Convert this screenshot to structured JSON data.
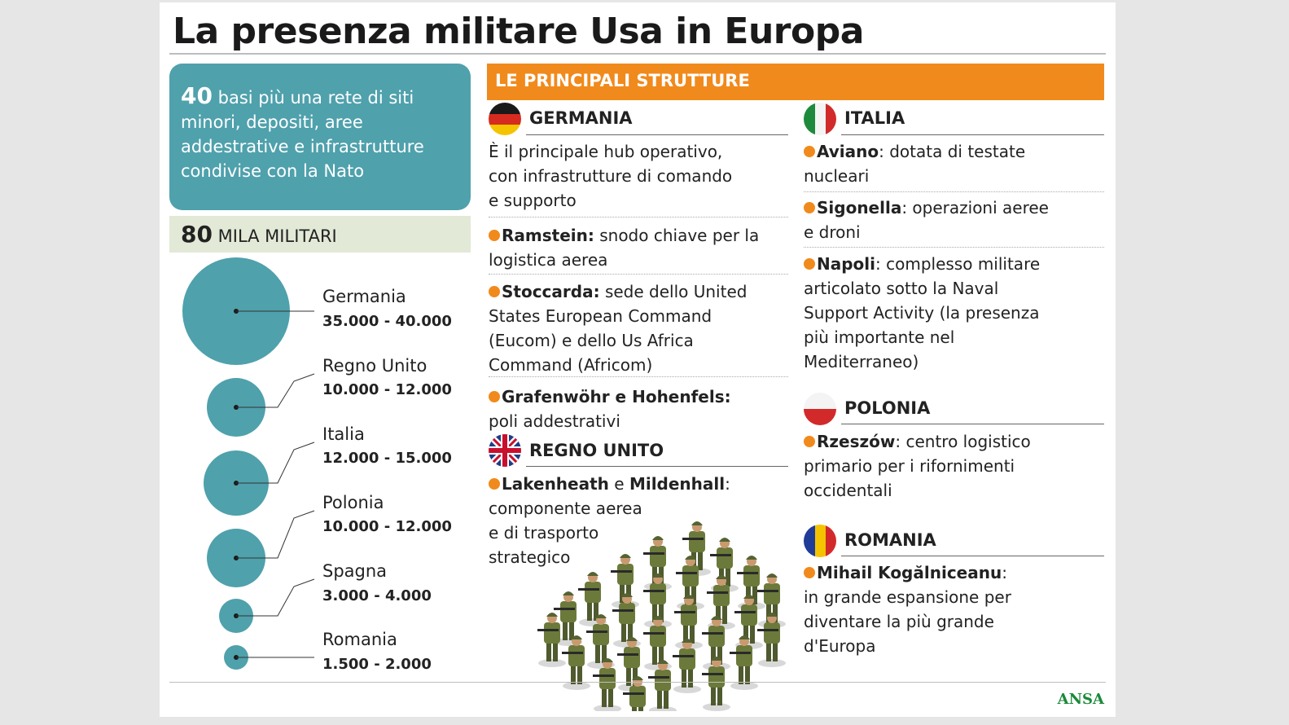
{
  "title": "La presenza militare Usa in Europa",
  "summary": {
    "bases_number": "40",
    "bases_text_l1": " basi più una rete di siti",
    "bases_text_l2": "minori, depositi, aree",
    "bases_text_l3": "addestrative e infrastrutture",
    "bases_text_l4": "condivise con la Nato",
    "troops_number": "80",
    "troops_text": " MILA MILITARI"
  },
  "troops_by_country": [
    {
      "country": "Germania",
      "range": "35.000 - 40.000",
      "min": 35000,
      "max": 40000
    },
    {
      "country": "Regno Unito",
      "range": "10.000 - 12.000",
      "min": 10000,
      "max": 12000
    },
    {
      "country": "Italia",
      "range": "12.000 - 15.000",
      "min": 12000,
      "max": 15000
    },
    {
      "country": "Polonia",
      "range": "10.000 - 12.000",
      "min": 10000,
      "max": 12000
    },
    {
      "country": "Spagna",
      "range": "3.000 - 4.000",
      "min": 3000,
      "max": 4000
    },
    {
      "country": "Romania",
      "range": "1.500 - 2.000",
      "min": 1500,
      "max": 2000
    }
  ],
  "structures_header": "LE PRINCIPALI STRUTTURE",
  "germania": {
    "name": "GERMANIA",
    "intro_l1": "È il principale hub operativo,",
    "intro_l2": "con infrastrutture di comando",
    "intro_l3": "e supporto",
    "ramstein_name": "Ramstein:",
    "ramstein_l1": " snodo chiave per la",
    "ramstein_l2": "logistica aerea",
    "stoccarda_name": "Stoccarda:",
    "stoccarda_l1": " sede dello United",
    "stoccarda_l2": "States European Command",
    "stoccarda_l3": "(Eucom) e dello Us Africa",
    "stoccarda_l4": "Command (Africom)",
    "grafen_name": "Grafenwöhr e Hohenfels:",
    "grafen_l2": "poli addestrativi"
  },
  "regno_unito": {
    "name": "REGNO UNITO",
    "lakenheath": "Lakenheath",
    "e": " e ",
    "mildenhall": "Mildenhall",
    "colon": ":",
    "l2": "componente aerea",
    "l3": "e di trasporto",
    "l4": "strategico"
  },
  "italia": {
    "name": "ITALIA",
    "aviano_name": "Aviano",
    "aviano_l1": ": dotata di testate",
    "aviano_l2": "nucleari",
    "sigonella_name": "Sigonella",
    "sigonella_l1": ": operazioni aeree",
    "sigonella_l2": "e droni",
    "napoli_name": "Napoli",
    "napoli_l1": ": complesso militare",
    "napoli_l2": "articolato sotto la Naval",
    "napoli_l3": "Support Activity (la presenza",
    "napoli_l4": "più importante nel",
    "napoli_l5": "Mediterraneo)"
  },
  "polonia": {
    "name": "POLONIA",
    "rzeszow_name": "Rzeszów",
    "rzeszow_l1": ": centro logistico",
    "rzeszow_l2": "primario per i rifornimenti",
    "rzeszow_l3": "occidentali"
  },
  "romania": {
    "name": "ROMANIA",
    "mk_name": "Mihail Kogălniceanu",
    "mk_colon": ":",
    "mk_l2": "in grande espansione per",
    "mk_l3": "diventare la più grande",
    "mk_l4": "d'Europa"
  },
  "source": "ANSA",
  "colors": {
    "teal": "#4fa1ac",
    "orange": "#f18a1c",
    "light_green": "#e2e9d6",
    "ansa_green": "#1a8a3a"
  }
}
